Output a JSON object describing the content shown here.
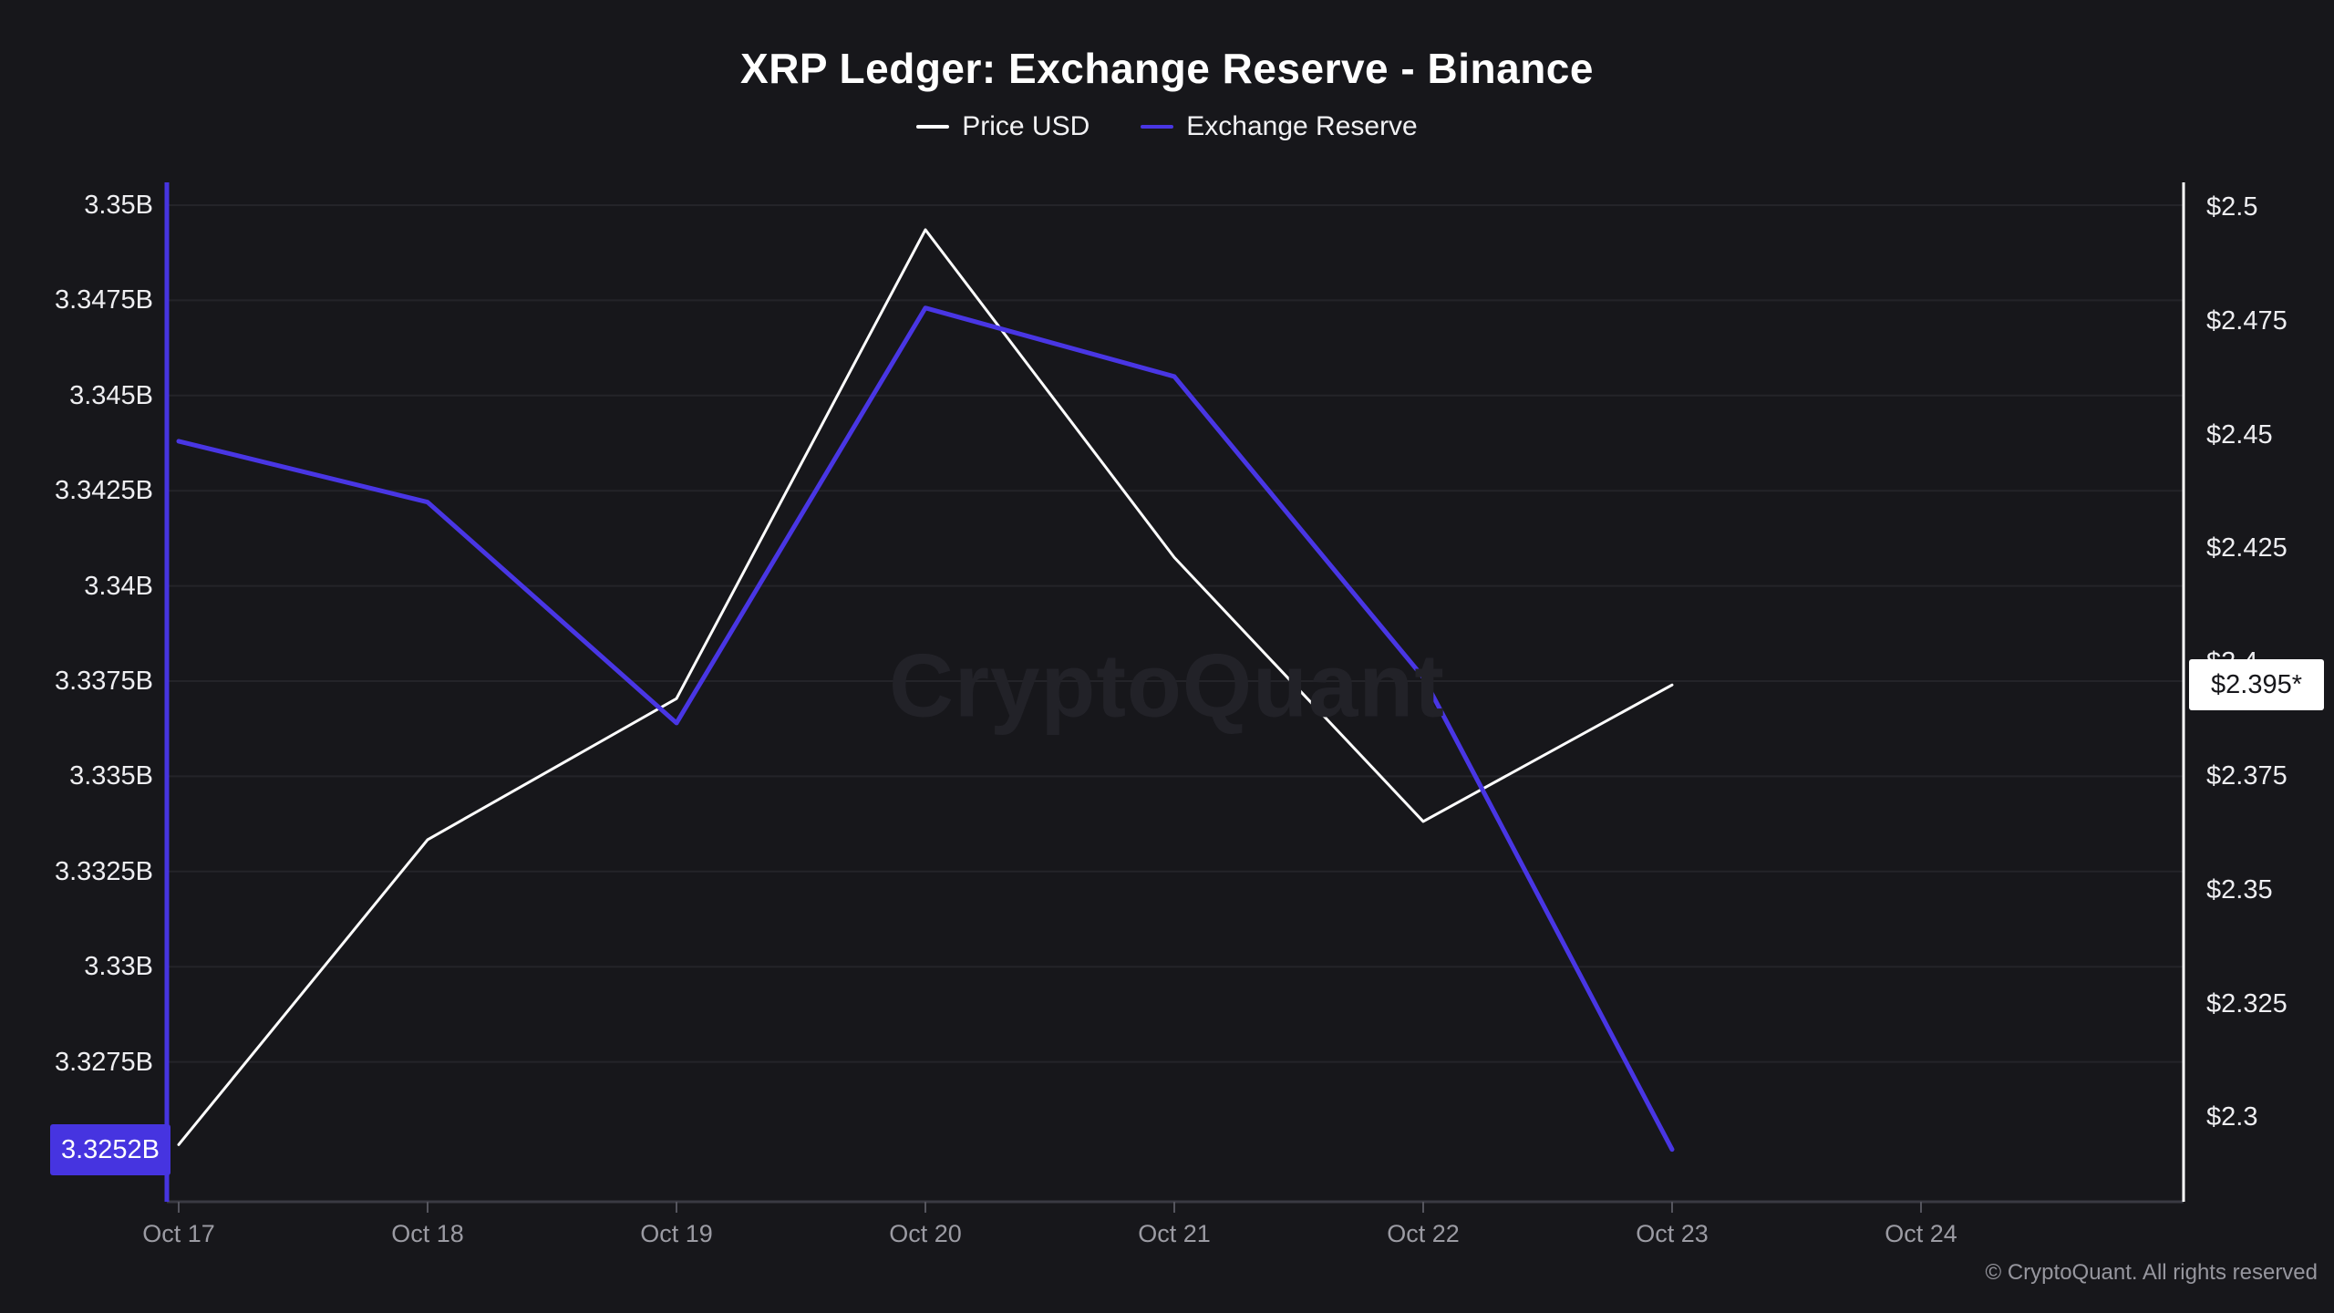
{
  "header": {
    "title": "XRP Ledger: Exchange Reserve - Binance"
  },
  "legend": [
    {
      "label": "Price USD",
      "color": "#ffffff"
    },
    {
      "label": "Exchange Reserve",
      "color": "#4936e4"
    }
  ],
  "axes": {
    "left": {
      "ticks": [
        {
          "label": "3.35B",
          "value": 3.35
        },
        {
          "label": "3.3475B",
          "value": 3.3475
        },
        {
          "label": "3.345B",
          "value": 3.345
        },
        {
          "label": "3.3425B",
          "value": 3.3425
        },
        {
          "label": "3.34B",
          "value": 3.34
        },
        {
          "label": "3.3375B",
          "value": 3.3375
        },
        {
          "label": "3.335B",
          "value": 3.335
        },
        {
          "label": "3.3325B",
          "value": 3.3325
        },
        {
          "label": "3.33B",
          "value": 3.33
        },
        {
          "label": "3.3275B",
          "value": 3.3275
        }
      ],
      "badge": {
        "label": "3.3252B",
        "value": 3.3252,
        "bg": "#4634e0"
      }
    },
    "right": {
      "ticks": [
        {
          "label": "$2.5",
          "value": 2.5
        },
        {
          "label": "$2.475",
          "value": 2.475
        },
        {
          "label": "$2.45",
          "value": 2.45
        },
        {
          "label": "$2.425",
          "value": 2.425
        },
        {
          "label": "$2.4",
          "value": 2.4
        },
        {
          "label": "$2.375",
          "value": 2.375
        },
        {
          "label": "$2.35",
          "value": 2.35
        },
        {
          "label": "$2.325",
          "value": 2.325
        },
        {
          "label": "$2.3",
          "value": 2.3
        }
      ],
      "badge": {
        "label": "$2.395*",
        "value": 2.395,
        "bg": "#ffffff"
      }
    },
    "x": {
      "ticks": [
        "Oct 17",
        "Oct 18",
        "Oct 19",
        "Oct 20",
        "Oct 21",
        "Oct 22",
        "Oct 23",
        "Oct 24"
      ]
    }
  },
  "chart_data": {
    "type": "line",
    "title": "XRP Ledger: Exchange Reserve - Binance",
    "x": [
      "Oct 17",
      "Oct 18",
      "Oct 19",
      "Oct 20",
      "Oct 21",
      "Oct 22",
      "Oct 23"
    ],
    "series": [
      {
        "name": "Price USD",
        "axis": "right",
        "color": "#ffffff",
        "stroke_width": 3,
        "values": [
          2.294,
          2.361,
          2.392,
          2.495,
          2.423,
          2.365,
          2.395
        ],
        "last_value_label": "$2.395*"
      },
      {
        "name": "Exchange Reserve",
        "axis": "left",
        "color": "#4936e4",
        "stroke_width": 5,
        "values": [
          3.3438,
          3.3422,
          3.3364,
          3.3473,
          3.3455,
          3.3376,
          3.3252
        ],
        "last_value_label": "3.3252B"
      }
    ],
    "left_ylabel": "Exchange Reserve",
    "right_ylabel": "Price USD",
    "left_ylim": [
      3.3238,
      3.3505
    ],
    "right_ylim": [
      2.281,
      2.5045
    ],
    "grid": "horizontal",
    "legend_position": "top"
  },
  "watermark": "CryptoQuant",
  "footer": {
    "copyright": "© CryptoQuant. All rights reserved"
  },
  "colors": {
    "background": "#17171b",
    "gridline": "#242429",
    "x_axis_line": "#3a3a42",
    "x_tick_mark": "#55555e",
    "left_axis_line": "#4634e0",
    "right_axis_line": "#ffffff",
    "x_label": "#9b9ba3",
    "y_label": "#eeeef1"
  }
}
